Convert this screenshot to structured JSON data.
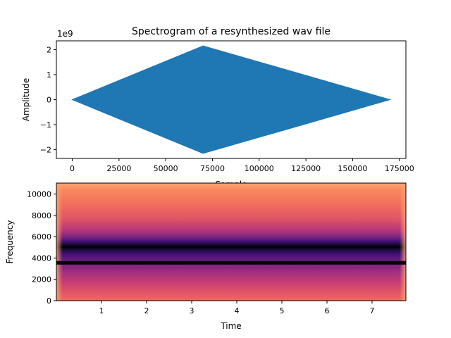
{
  "chart_data": [
    {
      "type": "area",
      "title": "Spectrogram of a resynthesized wav file",
      "xlabel": "Sample",
      "ylabel": "Amplitude",
      "y_offset_label": "1e9",
      "xlim": [
        -8500,
        178500
      ],
      "ylim": [
        -2.35,
        2.35
      ],
      "x_ticks": [
        0,
        25000,
        50000,
        75000,
        100000,
        125000,
        150000,
        175000
      ],
      "x_tick_labels": [
        "0",
        "25000",
        "50000",
        "75000",
        "100000",
        "125000",
        "150000",
        "175000"
      ],
      "y_ticks": [
        -2,
        -1,
        0,
        1,
        2
      ],
      "y_tick_labels": [
        "−2",
        "−1",
        "0",
        "1",
        "2"
      ],
      "series": [
        {
          "x": [
            0,
            70000,
            170000
          ],
          "y_upper": [
            0,
            2.15,
            0
          ],
          "y_lower": [
            0,
            -2.15,
            0
          ]
        }
      ],
      "color": "#1f77b4",
      "grid": false
    },
    {
      "type": "heatmap",
      "xlabel": "Time",
      "ylabel": "Frequency",
      "xlim": [
        0.0,
        7.75
      ],
      "ylim": [
        0,
        11025
      ],
      "x_ticks": [
        1,
        2,
        3,
        4,
        5,
        6,
        7
      ],
      "x_tick_labels": [
        "1",
        "2",
        "3",
        "4",
        "5",
        "6",
        "7"
      ],
      "y_ticks": [
        0,
        2000,
        4000,
        6000,
        8000,
        10000
      ],
      "y_tick_labels": [
        "0",
        "2000",
        "4000",
        "6000",
        "8000",
        "10000"
      ],
      "dominant_frequency": 3550,
      "colormap": "magma",
      "grid": false
    }
  ]
}
